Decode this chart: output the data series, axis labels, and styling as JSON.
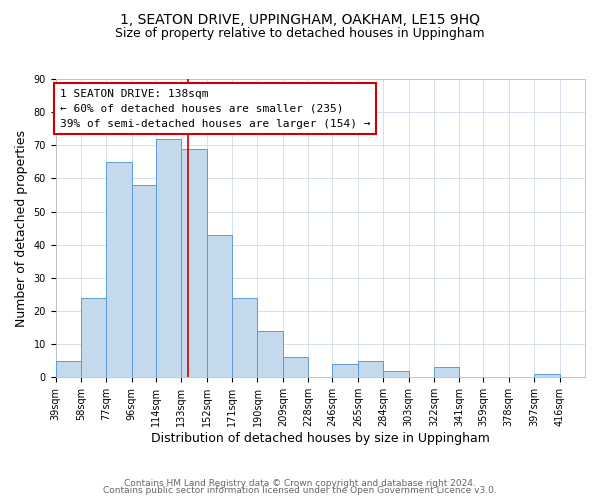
{
  "title": "1, SEATON DRIVE, UPPINGHAM, OAKHAM, LE15 9HQ",
  "subtitle": "Size of property relative to detached houses in Uppingham",
  "xlabel": "Distribution of detached houses by size in Uppingham",
  "ylabel": "Number of detached properties",
  "bar_left_edges": [
    39,
    58,
    77,
    96,
    114,
    133,
    152,
    171,
    190,
    209,
    228,
    246,
    265,
    284,
    303,
    322,
    341,
    359,
    378,
    397
  ],
  "bar_heights": [
    5,
    24,
    65,
    58,
    72,
    69,
    43,
    24,
    14,
    6,
    0,
    4,
    5,
    2,
    0,
    3,
    0,
    0,
    0,
    1
  ],
  "bar_widths": [
    19,
    19,
    19,
    19,
    19,
    19,
    19,
    19,
    19,
    19,
    18,
    19,
    19,
    19,
    19,
    19,
    18,
    19,
    19,
    19
  ],
  "bar_color": "#c5d9ed",
  "bar_edge_color": "#5b9bd5",
  "highlight_x": 138,
  "highlight_color": "#cc0000",
  "xlim": [
    39,
    435
  ],
  "ylim": [
    0,
    90
  ],
  "yticks": [
    0,
    10,
    20,
    30,
    40,
    50,
    60,
    70,
    80,
    90
  ],
  "xtick_labels": [
    "39sqm",
    "58sqm",
    "77sqm",
    "96sqm",
    "114sqm",
    "133sqm",
    "152sqm",
    "171sqm",
    "190sqm",
    "209sqm",
    "228sqm",
    "246sqm",
    "265sqm",
    "284sqm",
    "303sqm",
    "322sqm",
    "341sqm",
    "359sqm",
    "378sqm",
    "397sqm",
    "416sqm"
  ],
  "xtick_positions": [
    39,
    58,
    77,
    96,
    114,
    133,
    152,
    171,
    190,
    209,
    228,
    246,
    265,
    284,
    303,
    322,
    341,
    359,
    378,
    397,
    416
  ],
  "annotation_title": "1 SEATON DRIVE: 138sqm",
  "annotation_line1": "← 60% of detached houses are smaller (235)",
  "annotation_line2": "39% of semi-detached houses are larger (154) →",
  "footer_line1": "Contains HM Land Registry data © Crown copyright and database right 2024.",
  "footer_line2": "Contains public sector information licensed under the Open Government Licence v3.0.",
  "background_color": "#ffffff",
  "grid_color": "#d0dce8",
  "title_fontsize": 10,
  "subtitle_fontsize": 9,
  "axis_label_fontsize": 9,
  "tick_fontsize": 7,
  "annotation_fontsize": 8,
  "footer_fontsize": 6.5
}
